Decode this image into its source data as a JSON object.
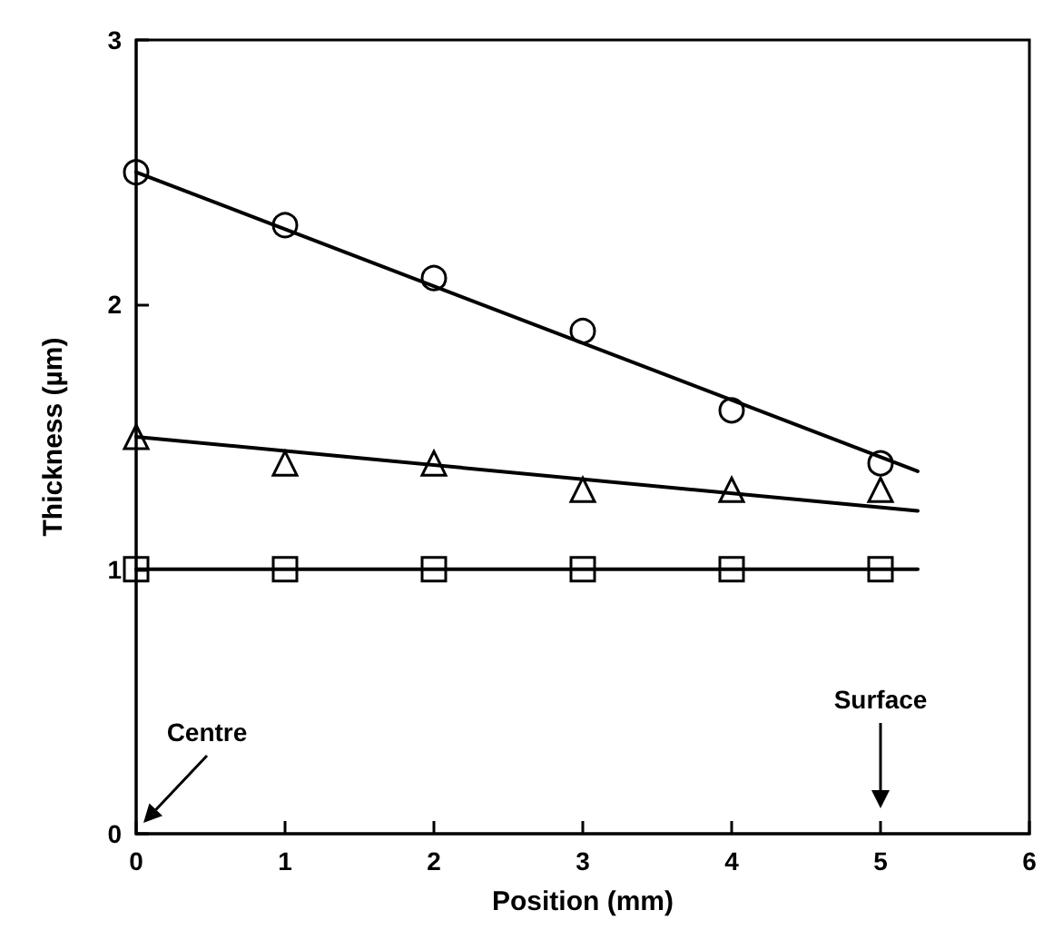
{
  "chart_data": {
    "type": "scatter",
    "xlabel": "Position (mm)",
    "ylabel": "Thickness (µm)",
    "xlim": [
      0,
      6
    ],
    "xticks": [
      0,
      1,
      2,
      3,
      4,
      5,
      6
    ],
    "ylim": [
      0,
      3
    ],
    "yticks": [
      0,
      1,
      2,
      3
    ],
    "grid": false,
    "series": [
      {
        "marker": "circle",
        "color": "#000000",
        "x": [
          0,
          1,
          2,
          3,
          4,
          5
        ],
        "values": [
          2.5,
          2.3,
          2.1,
          1.9,
          1.6,
          1.4
        ]
      },
      {
        "marker": "triangle",
        "color": "#000000",
        "x": [
          0,
          1,
          2,
          3,
          4,
          5
        ],
        "values": [
          1.5,
          1.4,
          1.4,
          1.3,
          1.3,
          1.3
        ]
      },
      {
        "marker": "square",
        "color": "#000000",
        "x": [
          0,
          1,
          2,
          3,
          4,
          5
        ],
        "values": [
          1.0,
          1.0,
          1.0,
          1.0,
          1.0,
          1.0
        ]
      },
      {
        "type": "line",
        "marker": "none",
        "color": "#000000",
        "x": [
          0,
          5.25
        ],
        "values": [
          2.5,
          1.37
        ]
      },
      {
        "type": "line",
        "marker": "none",
        "color": "#000000",
        "x": [
          0,
          5.25
        ],
        "values": [
          1.5,
          1.22
        ]
      },
      {
        "type": "line",
        "marker": "none",
        "color": "#000000",
        "x": [
          0,
          5.25
        ],
        "values": [
          1.0,
          1.0
        ]
      }
    ],
    "annotations": [
      "Centre",
      "Surface"
    ]
  }
}
